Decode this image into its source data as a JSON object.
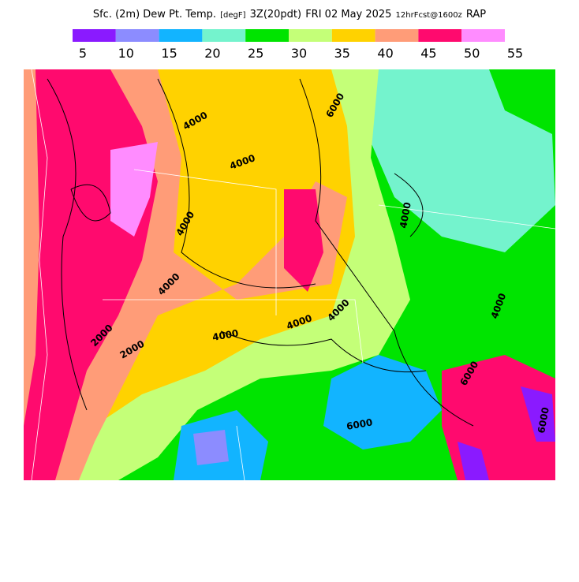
{
  "title": {
    "field": "Sfc. (2m) Dew Pt. Temp.",
    "units": "[degF]",
    "valid": "3Z(20pdt)",
    "date": "FRI 02 May 2025",
    "forecast": "12hrFcst@1600z",
    "model": "RAP"
  },
  "legend": {
    "colors": [
      "#8a1aff",
      "#8c8cff",
      "#12b4ff",
      "#74f3cd",
      "#00e400",
      "#c4ff78",
      "#ffd200",
      "#ff9c78",
      "#ff0a6e",
      "#ff8cff"
    ],
    "labels": [
      5,
      10,
      15,
      20,
      25,
      30,
      35,
      40,
      45,
      50,
      55
    ]
  },
  "contour_labels": [
    "4000",
    "4000",
    "4000",
    "4000",
    "4000",
    "4000",
    "4000",
    "4000",
    "4000",
    "2000",
    "2000",
    "6000",
    "6000",
    "6000",
    "6000"
  ]
}
